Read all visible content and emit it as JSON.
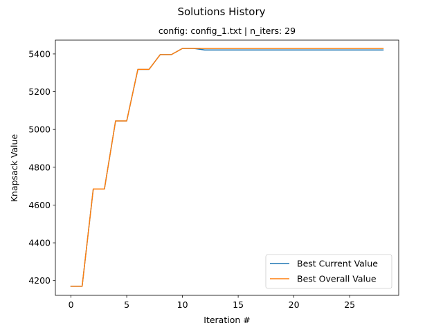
{
  "chart_data": {
    "type": "line",
    "title": "Solutions History",
    "subtitle": "config: config_1.txt | n_iters: 29",
    "xlabel": "Iteration #",
    "ylabel": "Knapsack Value",
    "xlim": [
      -1.4,
      29.4
    ],
    "ylim": [
      4122,
      5473
    ],
    "xticks": [
      0,
      5,
      10,
      15,
      20,
      25
    ],
    "yticks": [
      4200,
      4400,
      4600,
      4800,
      5000,
      5200,
      5400
    ],
    "grid": false,
    "legend_position": "lower-right",
    "x": [
      0,
      1,
      2,
      3,
      4,
      5,
      6,
      7,
      8,
      9,
      10,
      11,
      12,
      13,
      14,
      15,
      16,
      17,
      18,
      19,
      20,
      21,
      22,
      23,
      24,
      25,
      26,
      27,
      28
    ],
    "series": [
      {
        "name": "Best Current Value",
        "color": "#1f77b4",
        "values": [
          4170,
          4170,
          4685,
          4685,
          5045,
          5045,
          5318,
          5318,
          5396,
          5396,
          5429,
          5429,
          5421,
          5421,
          5421,
          5421,
          5421,
          5421,
          5421,
          5421,
          5421,
          5421,
          5421,
          5421,
          5421,
          5421,
          5421,
          5421,
          5421
        ]
      },
      {
        "name": "Best Overall Value",
        "color": "#ff7f0e",
        "values": [
          4170,
          4170,
          4685,
          4685,
          5045,
          5045,
          5318,
          5318,
          5396,
          5396,
          5429,
          5429,
          5429,
          5429,
          5429,
          5429,
          5429,
          5429,
          5429,
          5429,
          5429,
          5429,
          5429,
          5429,
          5429,
          5429,
          5429,
          5429,
          5429
        ]
      }
    ]
  }
}
